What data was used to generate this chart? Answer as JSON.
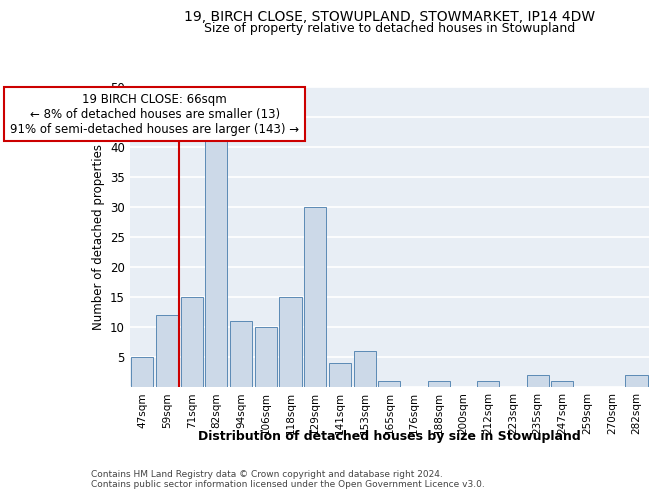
{
  "title1": "19, BIRCH CLOSE, STOWUPLAND, STOWMARKET, IP14 4DW",
  "title2": "Size of property relative to detached houses in Stowupland",
  "xlabel": "Distribution of detached houses by size in Stowupland",
  "ylabel": "Number of detached properties",
  "categories": [
    "47sqm",
    "59sqm",
    "71sqm",
    "82sqm",
    "94sqm",
    "106sqm",
    "118sqm",
    "129sqm",
    "141sqm",
    "153sqm",
    "165sqm",
    "176sqm",
    "188sqm",
    "200sqm",
    "212sqm",
    "223sqm",
    "235sqm",
    "247sqm",
    "259sqm",
    "270sqm",
    "282sqm"
  ],
  "values": [
    5,
    12,
    15,
    42,
    11,
    10,
    15,
    30,
    4,
    6,
    1,
    0,
    1,
    0,
    1,
    0,
    2,
    1,
    0,
    0,
    2
  ],
  "bar_color": "#ccd9e8",
  "bar_edge_color": "#5b8ab5",
  "background_color": "#e8eef5",
  "grid_color": "#ffffff",
  "vline_color": "#cc0000",
  "annotation_text": "19 BIRCH CLOSE: 66sqm\n← 8% of detached houses are smaller (13)\n91% of semi-detached houses are larger (143) →",
  "annotation_box_color": "#ffffff",
  "annotation_box_edge": "#cc0000",
  "footer1": "Contains HM Land Registry data © Crown copyright and database right 2024.",
  "footer2": "Contains public sector information licensed under the Open Government Licence v3.0.",
  "ylim": [
    0,
    50
  ],
  "yticks": [
    0,
    5,
    10,
    15,
    20,
    25,
    30,
    35,
    40,
    45,
    50
  ]
}
